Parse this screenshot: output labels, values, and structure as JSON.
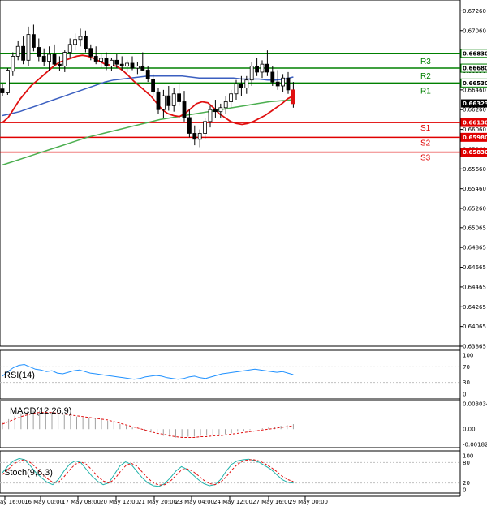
{
  "chart_data": {
    "type": "candlestick",
    "instrument_panel": {
      "y_ticks": [
        "0.67260",
        "0.67060",
        "0.66855",
        "0.66650",
        "0.66460",
        "0.66260",
        "0.66060",
        "0.65860",
        "0.65660",
        "0.65460",
        "0.65260",
        "0.65065",
        "0.64865",
        "0.64665",
        "0.64465",
        "0.64265",
        "0.64065",
        "0.63865"
      ],
      "ylim": [
        0.63865,
        0.6737
      ],
      "current_price": "0.66323",
      "levels": [
        {
          "name": "R3",
          "value": 0.6683,
          "text": "0.66830",
          "color": "#008000"
        },
        {
          "name": "R2",
          "value": 0.6668,
          "text": "0.66680",
          "color": "#008000"
        },
        {
          "name": "R1",
          "value": 0.6653,
          "text": "0.66530",
          "color": "#008000"
        },
        {
          "name": "S1",
          "value": 0.6613,
          "text": "0.66130",
          "color": "#e00000"
        },
        {
          "name": "S2",
          "value": 0.6598,
          "text": "0.65980",
          "color": "#e00000"
        },
        {
          "name": "S3",
          "value": 0.6583,
          "text": "0.65830",
          "color": "#e00000"
        }
      ],
      "candles": [
        [
          0.6647,
          0.6652,
          0.664,
          0.6643
        ],
        [
          0.6643,
          0.6668,
          0.6641,
          0.6666
        ],
        [
          0.6665,
          0.6684,
          0.666,
          0.668
        ],
        [
          0.668,
          0.6696,
          0.6676,
          0.669
        ],
        [
          0.669,
          0.67,
          0.6672,
          0.6676
        ],
        [
          0.6676,
          0.671,
          0.667,
          0.6702
        ],
        [
          0.6702,
          0.6712,
          0.6685,
          0.6689
        ],
        [
          0.6689,
          0.6698,
          0.6675,
          0.668
        ],
        [
          0.668,
          0.6688,
          0.667,
          0.6675
        ],
        [
          0.6675,
          0.669,
          0.6665,
          0.6682
        ],
        [
          0.6682,
          0.6692,
          0.667,
          0.6672
        ],
        [
          0.6672,
          0.668,
          0.6665,
          0.667
        ],
        [
          0.667,
          0.6686,
          0.6664,
          0.6684
        ],
        [
          0.6684,
          0.6698,
          0.6678,
          0.6692
        ],
        [
          0.6692,
          0.6703,
          0.6686,
          0.6697
        ],
        [
          0.6697,
          0.6708,
          0.669,
          0.67
        ],
        [
          0.67,
          0.6706,
          0.6684,
          0.6688
        ],
        [
          0.6688,
          0.6692,
          0.6676,
          0.668
        ],
        [
          0.668,
          0.669,
          0.6672,
          0.6675
        ],
        [
          0.6675,
          0.6682,
          0.6668,
          0.6678
        ],
        [
          0.6678,
          0.6684,
          0.6666,
          0.667
        ],
        [
          0.667,
          0.6678,
          0.6665,
          0.6676
        ],
        [
          0.6676,
          0.6682,
          0.6668,
          0.6672
        ],
        [
          0.6672,
          0.668,
          0.6666,
          0.667
        ],
        [
          0.667,
          0.6676,
          0.6664,
          0.6673
        ],
        [
          0.6673,
          0.668,
          0.6666,
          0.6668
        ],
        [
          0.6668,
          0.6674,
          0.6662,
          0.667
        ],
        [
          0.667,
          0.6684,
          0.6665,
          0.6666
        ],
        [
          0.6666,
          0.667,
          0.6654,
          0.6657
        ],
        [
          0.6657,
          0.6662,
          0.664,
          0.6644
        ],
        [
          0.6644,
          0.6648,
          0.6622,
          0.6626
        ],
        [
          0.6626,
          0.6646,
          0.6618,
          0.664
        ],
        [
          0.664,
          0.665,
          0.6625,
          0.663
        ],
        [
          0.663,
          0.6648,
          0.6624,
          0.6642
        ],
        [
          0.6642,
          0.6652,
          0.663,
          0.6634
        ],
        [
          0.6634,
          0.6645,
          0.6614,
          0.6618
        ],
        [
          0.6618,
          0.6626,
          0.6598,
          0.6602
        ],
        [
          0.6602,
          0.661,
          0.659,
          0.6596
        ],
        [
          0.6596,
          0.6606,
          0.6588,
          0.6602
        ],
        [
          0.6602,
          0.6618,
          0.6596,
          0.6614
        ],
        [
          0.6614,
          0.663,
          0.6608,
          0.6626
        ],
        [
          0.6626,
          0.6636,
          0.6618,
          0.6624
        ],
        [
          0.6624,
          0.6632,
          0.6618,
          0.6628
        ],
        [
          0.6628,
          0.664,
          0.6622,
          0.6634
        ],
        [
          0.6634,
          0.6646,
          0.6628,
          0.6642
        ],
        [
          0.6642,
          0.6656,
          0.6636,
          0.6652
        ],
        [
          0.6652,
          0.666,
          0.664,
          0.6648
        ],
        [
          0.6648,
          0.666,
          0.6642,
          0.6656
        ],
        [
          0.6656,
          0.6674,
          0.665,
          0.667
        ],
        [
          0.667,
          0.6678,
          0.666,
          0.6664
        ],
        [
          0.6664,
          0.6676,
          0.6658,
          0.6672
        ],
        [
          0.6672,
          0.6686,
          0.666,
          0.6664
        ],
        [
          0.6664,
          0.667,
          0.665,
          0.6654
        ],
        [
          0.6654,
          0.6666,
          0.6646,
          0.665
        ],
        [
          0.665,
          0.6662,
          0.6644,
          0.6658
        ],
        [
          0.6658,
          0.6664,
          0.6642,
          0.6646
        ],
        [
          0.6646,
          0.6654,
          0.6628,
          0.6632
        ]
      ],
      "ma_fast": [
        0.6613,
        0.6618,
        0.6627,
        0.6636,
        0.6643,
        0.665,
        0.6655,
        0.666,
        0.6665,
        0.667,
        0.6674,
        0.6676,
        0.6678,
        0.668,
        0.6681,
        0.668,
        0.6678,
        0.6675,
        0.6672,
        0.6671,
        0.667,
        0.6666,
        0.6661,
        0.6655,
        0.665,
        0.6645,
        0.664,
        0.6633,
        0.6626,
        0.6622,
        0.662,
        0.6619,
        0.6622,
        0.6627,
        0.6632,
        0.6634,
        0.6633,
        0.6628,
        0.6622,
        0.6618,
        0.6614,
        0.6612,
        0.6611,
        0.6612,
        0.6614,
        0.6617,
        0.662,
        0.6624,
        0.6628,
        0.6632,
        0.6637,
        0.664
      ],
      "ma_mid": [
        0.662,
        0.6622,
        0.6624,
        0.6627,
        0.663,
        0.6633,
        0.6636,
        0.6639,
        0.6642,
        0.6645,
        0.6648,
        0.6651,
        0.6654,
        0.6656,
        0.6657,
        0.6658,
        0.6659,
        0.666,
        0.666,
        0.666,
        0.666,
        0.666,
        0.6659,
        0.6658,
        0.6658,
        0.6658,
        0.6658,
        0.6658,
        0.6657,
        0.6657,
        0.6657,
        0.6656,
        0.6656,
        0.6657,
        0.6659
      ],
      "ma_slow": [
        0.657,
        0.6574,
        0.6578,
        0.6582,
        0.6586,
        0.659,
        0.6594,
        0.6598,
        0.6601,
        0.6604,
        0.6607,
        0.661,
        0.6613,
        0.6616,
        0.6618,
        0.662,
        0.6622,
        0.6624,
        0.6626,
        0.6628,
        0.663,
        0.6632,
        0.6634,
        0.6635,
        0.6636
      ]
    },
    "x_ticks": [
      "ay 16:00",
      "16 May 00:00",
      "17 May 08:00",
      "20 May 12:00",
      "21 May 20:00",
      "23 May 04:00",
      "24 May 12:00",
      "27 May 16:00",
      "29 May 00:00"
    ],
    "rsi": {
      "label": "RSI(14)",
      "y_ticks": [
        "100",
        "70",
        "30",
        "0"
      ],
      "values": [
        46,
        58,
        68,
        74,
        76,
        70,
        64,
        62,
        58,
        60,
        54,
        52,
        56,
        60,
        62,
        58,
        54,
        52,
        50,
        48,
        46,
        44,
        42,
        40,
        38,
        40,
        44,
        46,
        48,
        46,
        42,
        40,
        38,
        40,
        44,
        46,
        42,
        40,
        44,
        48,
        52,
        54,
        56,
        58,
        60,
        62,
        64,
        62,
        60,
        58,
        56,
        58,
        54,
        50
      ]
    },
    "macd": {
      "label": "MACD(12,26,9)",
      "y_ticks": [
        "0.003034",
        "0.00",
        "-0.001826"
      ],
      "histogram": [
        0.0009,
        0.0012,
        0.0016,
        0.0019,
        0.0021,
        0.0022,
        0.0022,
        0.0021,
        0.002,
        0.0019,
        0.0017,
        0.0016,
        0.0015,
        0.0014,
        0.0014,
        0.0013,
        0.0012,
        0.001,
        0.0008,
        0.0006,
        0.0004,
        0.0002,
        0.0,
        -0.0002,
        -0.0004,
        -0.0006,
        -0.0008,
        -0.0009,
        -0.001,
        -0.001,
        -0.0009,
        -0.0009,
        -0.0008,
        -0.0008,
        -0.0008,
        -0.0007,
        -0.0006,
        -0.0005,
        -0.0003,
        -0.0002,
        -0.0001,
        0.0,
        0.0001,
        0.0002,
        0.0003,
        0.0004,
        0.0005,
        0.0006
      ],
      "signal": [
        0.0006,
        0.0009,
        0.0012,
        0.0015,
        0.0017,
        0.0019,
        0.002,
        0.002,
        0.002,
        0.0019,
        0.0018,
        0.0017,
        0.0016,
        0.0015,
        0.0014,
        0.0013,
        0.0012,
        0.0011,
        0.0009,
        0.0007,
        0.0005,
        0.0003,
        0.0001,
        -0.0001,
        -0.0003,
        -0.0005,
        -0.0006,
        -0.0008,
        -0.0009,
        -0.001,
        -0.001,
        -0.001,
        -0.0009,
        -0.0009,
        -0.0008,
        -0.0008,
        -0.0007,
        -0.0006,
        -0.0005,
        -0.0004,
        -0.0003,
        -0.0002,
        -0.0001,
        0.0,
        0.0001,
        0.0002,
        0.0003,
        0.0004
      ]
    },
    "stoch": {
      "label": "Stoch(9,6,3)",
      "y_ticks": [
        "100",
        "80",
        "20",
        "0"
      ],
      "main": [
        50,
        70,
        85,
        92,
        88,
        70,
        50,
        35,
        22,
        15,
        30,
        55,
        75,
        85,
        80,
        60,
        40,
        25,
        15,
        20,
        45,
        70,
        82,
        75,
        55,
        35,
        20,
        12,
        10,
        18,
        35,
        55,
        68,
        60,
        45,
        30,
        18,
        12,
        15,
        30,
        55,
        75,
        85,
        88,
        90,
        86,
        80,
        70,
        60,
        45,
        30,
        22,
        20
      ],
      "signal": [
        45,
        60,
        75,
        86,
        88,
        80,
        65,
        48,
        33,
        22,
        22,
        38,
        58,
        75,
        82,
        75,
        58,
        40,
        26,
        20,
        30,
        52,
        70,
        78,
        70,
        52,
        34,
        20,
        14,
        15,
        25,
        42,
        58,
        62,
        55,
        42,
        28,
        18,
        15,
        22,
        38,
        58,
        75,
        84,
        88,
        88,
        84,
        76,
        66,
        54,
        40,
        30,
        24
      ]
    }
  }
}
